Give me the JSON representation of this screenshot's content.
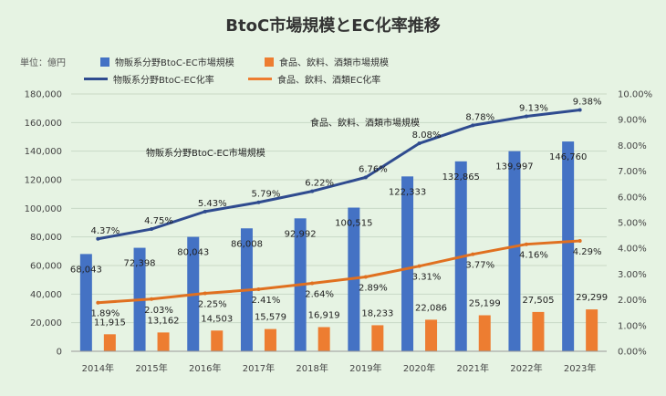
{
  "title": "BtoC市場規模とEC化率推移",
  "unit_label": "単位：億円",
  "colors": {
    "physical": "#4472c4",
    "food": "#ed7d31",
    "physical_line": "#2f4b8f",
    "food_line": "#e07020"
  },
  "legend": {
    "bar_physical": "物販系分野BtoC-EC市場規模",
    "bar_food": "食品、飲料、酒類市場規模",
    "line_physical": "物販系分野BtoC-EC化率",
    "line_food": "食品、飲料、酒類EC化率"
  },
  "annotations": {
    "physical_market": "物販系分野BtoC-EC市場規模",
    "food_market": "食品、飲料、酒類市場規模"
  },
  "chart_data": {
    "type": "bar",
    "categories": [
      "2014年",
      "2015年",
      "2016年",
      "2017年",
      "2018年",
      "2019年",
      "2020年",
      "2021年",
      "2022年",
      "2023年"
    ],
    "y_left": {
      "min": 0,
      "max": 180000,
      "step": 20000
    },
    "y_right": {
      "min": 0,
      "max": 10,
      "step": 1,
      "format": "percent_2dp"
    },
    "series": [
      {
        "name": "物販系分野BtoC-EC市場規模",
        "type": "bar",
        "axis": "left",
        "values": [
          68043,
          72398,
          80043,
          86008,
          92992,
          100515,
          122333,
          132865,
          139997,
          146760
        ],
        "labels": [
          "68,043",
          "72,398",
          "80,043",
          "86,008",
          "92,992",
          "100,515",
          "122,333",
          "132,865",
          "139,997",
          "146,760"
        ]
      },
      {
        "name": "食品、飲料、酒類市場規模",
        "type": "bar",
        "axis": "left",
        "values": [
          11915,
          13162,
          14503,
          15579,
          16919,
          18233,
          22086,
          25199,
          27505,
          29299
        ],
        "labels": [
          "11,915",
          "13,162",
          "14,503",
          "15,579",
          "16,919",
          "18,233",
          "22,086",
          "25,199",
          "27,505",
          "29,299"
        ]
      },
      {
        "name": "物販系分野BtoC-EC化率",
        "type": "line",
        "axis": "right",
        "values": [
          4.37,
          4.75,
          5.43,
          5.79,
          6.22,
          6.76,
          8.08,
          8.78,
          9.13,
          9.38
        ],
        "labels": [
          "4.37%",
          "4.75%",
          "5.43%",
          "5.79%",
          "6.22%",
          "6.76%",
          "8.08%",
          "8.78%",
          "9.13%",
          "9.38%"
        ]
      },
      {
        "name": "食品、飲料、酒類EC化率",
        "type": "line",
        "axis": "right",
        "values": [
          1.89,
          2.03,
          2.25,
          2.41,
          2.64,
          2.89,
          3.31,
          3.77,
          4.16,
          4.29
        ],
        "labels": [
          "1.89%",
          "2.03%",
          "2.25%",
          "2.41%",
          "2.64%",
          "2.89%",
          "3.31%",
          "3.77%",
          "4.16%",
          "4.29%"
        ]
      }
    ]
  }
}
